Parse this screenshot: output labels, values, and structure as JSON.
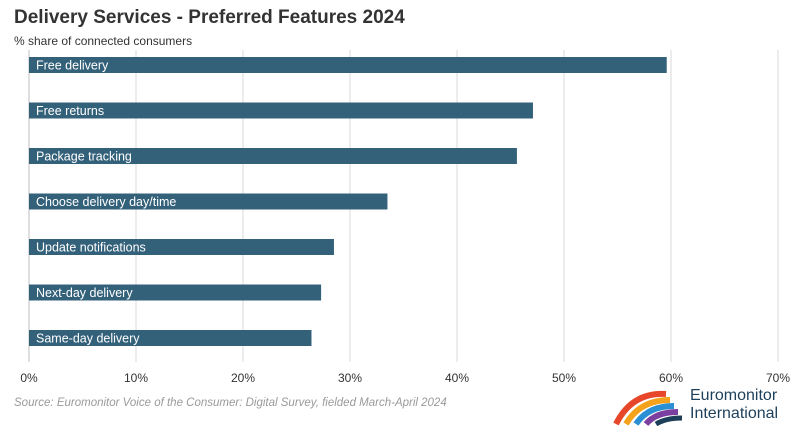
{
  "header": {
    "title": "Delivery Services - Preferred Features 2024",
    "subtitle": "% share of connected consumers"
  },
  "footer": {
    "source": "Source: Euromonitor Voice of the Consumer: Digital Survey, fielded March-April 2024"
  },
  "logo": {
    "line1": "Euromonitor",
    "line2": "International"
  },
  "colors": {
    "bar": "#34617a",
    "bar_label": "#ffffff",
    "grid": "#d9d9d9",
    "axis_text": "#333333"
  },
  "chart_data": {
    "type": "bar",
    "orientation": "horizontal",
    "categories": [
      "Free delivery",
      "Free returns",
      "Package tracking",
      "Choose delivery day/time",
      "Update notifications",
      "Next-day delivery",
      "Same-day delivery"
    ],
    "values": [
      59.6,
      47.1,
      45.6,
      33.5,
      28.5,
      27.3,
      26.4
    ],
    "xlim": [
      0,
      70
    ],
    "xticks": [
      0,
      10,
      20,
      30,
      40,
      50,
      60,
      70
    ],
    "xtick_labels": [
      "0%",
      "10%",
      "20%",
      "30%",
      "40%",
      "50%",
      "60%",
      "70%"
    ],
    "title": "Delivery Services - Preferred Features 2024",
    "subtitle": "% share of connected consumers",
    "grid": true,
    "legend": false,
    "labels_inside_bars": true
  }
}
